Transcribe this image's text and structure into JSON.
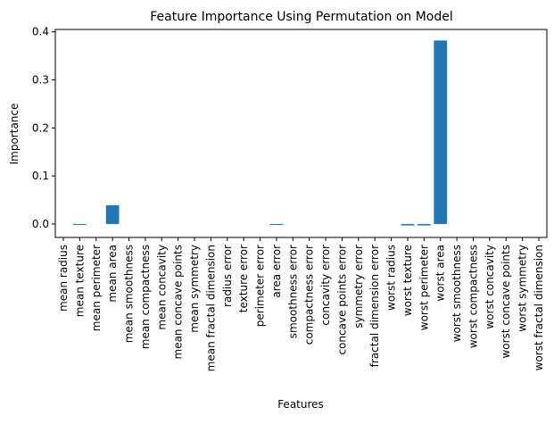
{
  "chart_data": {
    "type": "bar",
    "title": "Feature Importance Using Permutation on Model",
    "xlabel": "Features",
    "ylabel": "Importance",
    "ylim": [
      -0.028,
      0.405
    ],
    "yticks": [
      0.0,
      0.1,
      0.2,
      0.3,
      0.4
    ],
    "ytick_labels": [
      "0.0",
      "0.1",
      "0.2",
      "0.3",
      "0.4"
    ],
    "grid": false,
    "color": "#1f77b4",
    "categories": [
      "mean radius",
      "mean texture",
      "mean perimeter",
      "mean area",
      "mean smoothness",
      "mean compactness",
      "mean concavity",
      "mean concave points",
      "mean symmetry",
      "mean fractal dimension",
      "radius error",
      "texture error",
      "perimeter error",
      "area error",
      "smoothness error",
      "compactness error",
      "concavity error",
      "concave points error",
      "symmetry error",
      "fractal dimension error",
      "worst radius",
      "worst texture",
      "worst perimeter",
      "worst area",
      "worst smoothness",
      "worst compactness",
      "worst concavity",
      "worst concave points",
      "worst symmetry",
      "worst fractal dimension"
    ],
    "values": [
      0.0,
      -0.002,
      0.0,
      0.039,
      0.0,
      0.0,
      0.0,
      0.0,
      0.0,
      0.0,
      0.0,
      0.0,
      0.0,
      -0.002,
      0.0,
      0.0,
      0.0,
      0.0,
      0.0,
      0.0,
      0.0,
      -0.003,
      -0.003,
      0.382,
      0.0,
      0.0,
      0.0,
      0.0,
      0.0,
      0.0
    ]
  }
}
